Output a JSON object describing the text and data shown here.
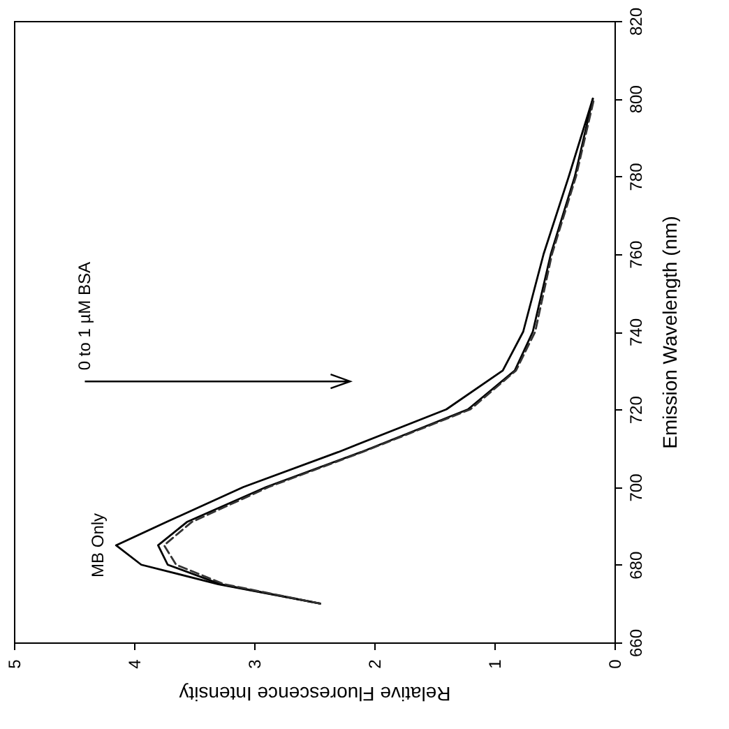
{
  "chart_data": {
    "type": "line",
    "xlabel": "Relative Fluorescence Intensity",
    "ylabel": "Emission Wavelength (nm)",
    "series": [
      {
        "name": "MB Only",
        "color": "#000000",
        "x": [
          2.45,
          3.3,
          3.94,
          4.15,
          3.73,
          3.09,
          2.3,
          1.4,
          0.93,
          0.76,
          0.59,
          0.38,
          0.18
        ],
        "values": [
          670,
          675,
          680,
          685,
          691,
          700,
          709,
          720,
          730,
          740,
          760,
          780,
          800
        ]
      },
      {
        "color": "#000000",
        "x": [
          2.45,
          3.28,
          3.72,
          3.8,
          3.56,
          2.9,
          2.11,
          1.22,
          0.83,
          0.68,
          0.53,
          0.33,
          0.18
        ],
        "values": [
          670,
          675,
          680,
          685,
          691,
          700,
          709,
          720,
          730,
          740,
          760,
          780,
          800
        ]
      },
      {
        "color": "#333333",
        "line_style": "dashed",
        "x": [
          2.45,
          3.25,
          3.65,
          3.75,
          3.52,
          2.88,
          2.1,
          1.2,
          0.82,
          0.66,
          0.52,
          0.32,
          0.17
        ],
        "values": [
          670,
          675,
          680,
          685,
          691,
          700,
          709,
          720,
          730,
          740,
          760,
          780,
          800
        ]
      }
    ],
    "annotations": [
      "0 to 1 µM BSA"
    ],
    "xlim": [
      5,
      0
    ],
    "xticks": [
      5,
      4,
      3,
      2,
      1,
      0
    ],
    "ylim": [
      660,
      820
    ],
    "yticks": [
      660,
      680,
      700,
      720,
      740,
      760,
      780,
      800,
      820
    ],
    "grid": false,
    "line_style": "solid"
  }
}
